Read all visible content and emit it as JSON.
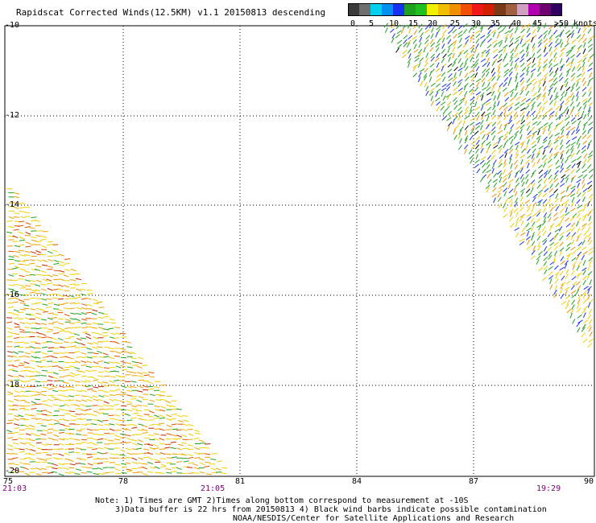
{
  "title": "Rapidscat Corrected Winds(12.5KM) v1.1 20150813 descending",
  "colorbar": {
    "colors": [
      "#3a3a3a",
      "#6e6e6e",
      "#00d0f0",
      "#0090f0",
      "#1830f0",
      "#20a020",
      "#20c020",
      "#f0f000",
      "#f0c000",
      "#f09000",
      "#f05000",
      "#f01818",
      "#d02000",
      "#7a3a1a",
      "#a06040",
      "#d0a0c0",
      "#b000b0",
      "#700070",
      "#300060"
    ],
    "labels": [
      "0",
      "5",
      "10",
      "15",
      "20",
      "25",
      "30",
      "35",
      "40",
      "45",
      ">50 knots"
    ]
  },
  "lat_labels": [
    "-10",
    "-12",
    "-14",
    "-16",
    "-18",
    "-20"
  ],
  "lon_labels": [
    "75",
    "78",
    "81",
    "84",
    "87",
    "90"
  ],
  "time_labels": [
    "21:03",
    "21:05",
    "19:29"
  ],
  "notes": [
    "Note: 1) Times are GMT 2)Times along bottom correspond to measurement at -10S",
    "3)Data buffer is 22 hrs from 20150813 4) Black wind barbs indicate possible contamination",
    "NOAA/NESDIS/Center for Satellite Applications and Research"
  ]
}
